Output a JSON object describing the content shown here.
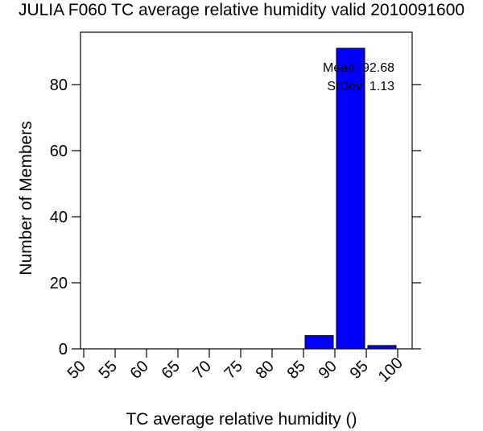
{
  "chart_data": {
    "type": "bar",
    "title": "JULIA F060 TC average relative humidity valid 2010091600",
    "xlabel": "TC average relative humidity ()",
    "ylabel": "Number of Members",
    "x_ticks": [
      "50",
      "55",
      "60",
      "65",
      "70",
      "75",
      "80",
      "85",
      "90",
      "95",
      "100"
    ],
    "y_ticks": [
      "0",
      "20",
      "40",
      "60",
      "80"
    ],
    "xlim": [
      50,
      100
    ],
    "ylim": [
      0,
      95
    ],
    "bins": [
      {
        "start": 85,
        "end": 90,
        "value": 4
      },
      {
        "start": 90,
        "end": 95,
        "value": 91
      },
      {
        "start": 95,
        "end": 100,
        "value": 1
      }
    ],
    "bar_color": "#0000ff",
    "annotations": {
      "mean": "Mean: 92.68",
      "stdev": "StDev: 1.13"
    },
    "grid": false
  }
}
